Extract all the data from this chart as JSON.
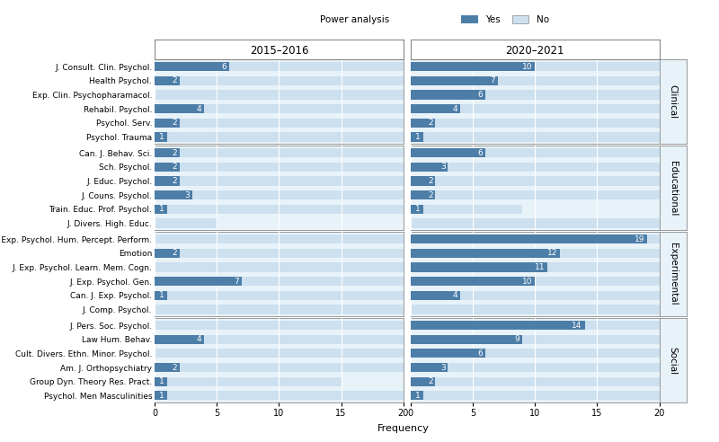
{
  "period1": "2015–2016",
  "period2": "2020–2021",
  "categories": {
    "Clinical": [
      "J. Consult. Clin. Psychol.",
      "Health Psychol.",
      "Exp. Clin. Psychopharamacol.",
      "Rehabil. Psychol.",
      "Psychol. Serv.",
      "Psychol. Trauma"
    ],
    "Educational": [
      "Can. J. Behav. Sci.",
      "Sch. Psychol.",
      "J. Educ. Psychol.",
      "J. Couns. Psychol.",
      "Train. Educ. Prof. Psychol.",
      "J. Divers. High. Educ."
    ],
    "Experimental": [
      "J. Exp. Psychol. Hum. Percept. Perform.",
      "Emotion",
      "J. Exp. Psychol. Learn. Mem. Cogn.",
      "J. Exp. Psychol. Gen.",
      "Can. J. Exp. Psychol.",
      "J. Comp. Psychol."
    ],
    "Social": [
      "J. Pers. Soc. Psychol.",
      "Law Hum. Behav.",
      "Cult. Divers. Ethn. Minor. Psychol.",
      "Am. J. Orthopsychiatry",
      "Group Dyn. Theory Res. Pract.",
      "Psychol. Men Masculinities"
    ]
  },
  "yes_2015": {
    "Clinical": [
      6,
      2,
      0,
      4,
      2,
      1
    ],
    "Educational": [
      2,
      2,
      2,
      3,
      1,
      0
    ],
    "Experimental": [
      0,
      2,
      0,
      7,
      1,
      0
    ],
    "Social": [
      0,
      4,
      0,
      2,
      1,
      1
    ]
  },
  "no_2015": {
    "Clinical": [
      20,
      20,
      20,
      20,
      20,
      20
    ],
    "Educational": [
      20,
      20,
      20,
      20,
      20,
      5
    ],
    "Experimental": [
      20,
      20,
      20,
      20,
      20,
      20
    ],
    "Social": [
      20,
      20,
      20,
      20,
      15,
      20
    ]
  },
  "yes_2020": {
    "Clinical": [
      10,
      7,
      6,
      4,
      2,
      1
    ],
    "Educational": [
      6,
      3,
      2,
      2,
      1,
      0
    ],
    "Experimental": [
      19,
      12,
      11,
      10,
      4,
      0
    ],
    "Social": [
      14,
      9,
      6,
      3,
      2,
      1
    ]
  },
  "no_2020": {
    "Clinical": [
      20,
      20,
      20,
      20,
      20,
      20
    ],
    "Educational": [
      20,
      20,
      20,
      20,
      9,
      20
    ],
    "Experimental": [
      20,
      20,
      20,
      20,
      20,
      20
    ],
    "Social": [
      20,
      20,
      20,
      20,
      20,
      20
    ]
  },
  "color_yes": "#4d7ea8",
  "color_no": "#cce0ef",
  "color_panel_bg": "#e8f2f9",
  "xlim": [
    0,
    20
  ],
  "xlabel": "Frequency",
  "bar_height": 0.65,
  "label_fontsize": 6.5,
  "tick_fontsize": 7,
  "header_fontsize": 8.5,
  "facet_label_fontsize": 7.5
}
